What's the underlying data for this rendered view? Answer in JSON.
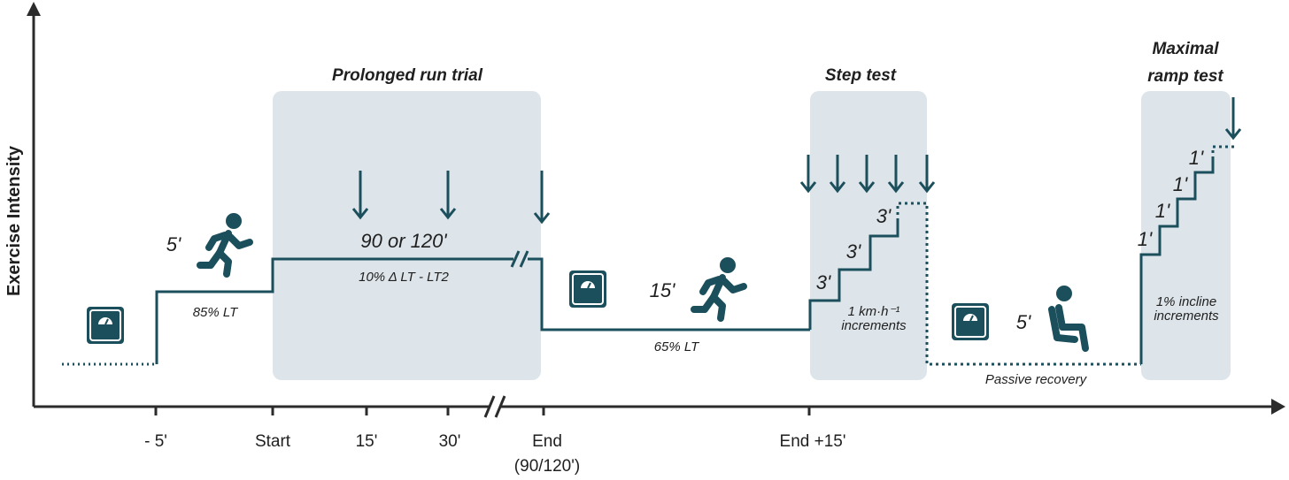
{
  "axes": {
    "y_label": "Exercise Intensity",
    "x_ticks": [
      "- 5'",
      "Start",
      "15'",
      "30'",
      "End",
      "(90/120')",
      "End +15'"
    ]
  },
  "phases": {
    "warmup": {
      "duration": "5'",
      "intensity": "85% LT"
    },
    "prolonged": {
      "title": "Prolonged run trial",
      "duration": "90 or 120'",
      "intensity": "10% Δ LT - LT2"
    },
    "transition": {
      "duration": "15'",
      "intensity": "65% LT"
    },
    "step_test": {
      "title": "Step test",
      "step1": "3'",
      "step2": "3'",
      "step3": "3'",
      "increment_line1": "1 km·h⁻¹",
      "increment_line2": "increments"
    },
    "recovery": {
      "duration": "5'",
      "label": "Passive recovery"
    },
    "ramp_test": {
      "title_line1": "Maximal",
      "title_line2": "ramp test",
      "step1": "1'",
      "step2": "1'",
      "step3": "1'",
      "step4": "1'",
      "increment_line1": "1% incline",
      "increment_line2": "increments"
    }
  },
  "colors": {
    "line": "#1c4f5c",
    "box": "#dde5ea",
    "axis": "#2b2b2b",
    "icon": "#1c4f5c"
  },
  "icons": [
    "scale-icon",
    "runner-icon",
    "seated-person-icon",
    "down-arrow-icon"
  ]
}
